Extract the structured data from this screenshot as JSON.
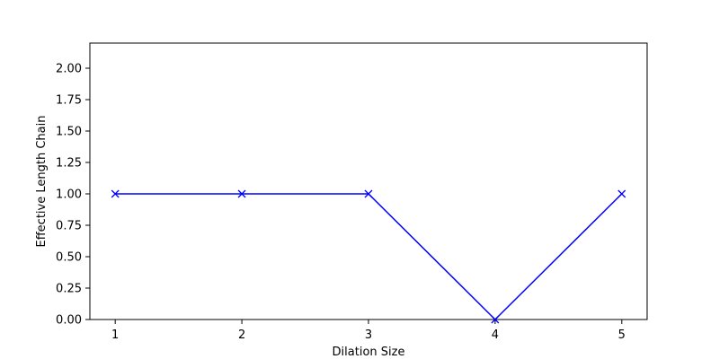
{
  "chart_data": {
    "type": "line",
    "title": "",
    "xlabel": "Dilation Size",
    "ylabel": "Effective Length Chain",
    "x": [
      1,
      2,
      3,
      4,
      5
    ],
    "series": [
      {
        "values": [
          1.0,
          1.0,
          1.0,
          0.0,
          1.0
        ],
        "color": "#0000ff",
        "marker": "x"
      }
    ],
    "xlim": [
      0.8,
      5.2
    ],
    "ylim": [
      0.0,
      2.2
    ],
    "xticks": [
      "1",
      "2",
      "3",
      "4",
      "5"
    ],
    "yticks": [
      "0.00",
      "0.25",
      "0.50",
      "0.75",
      "1.00",
      "1.25",
      "1.50",
      "1.75",
      "2.00"
    ],
    "grid": false,
    "legend": "none"
  }
}
